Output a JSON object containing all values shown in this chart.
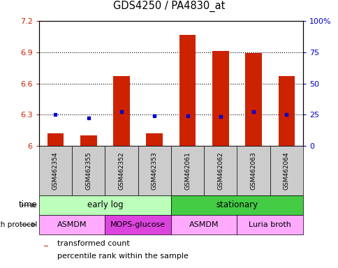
{
  "title": "GDS4250 / PA4830_at",
  "samples": [
    "GSM462354",
    "GSM462355",
    "GSM462352",
    "GSM462353",
    "GSM462061",
    "GSM462062",
    "GSM462063",
    "GSM462064"
  ],
  "transformed_counts": [
    6.12,
    6.1,
    6.67,
    6.12,
    7.07,
    6.91,
    6.89,
    6.67
  ],
  "percentile_ranks": [
    6.3,
    6.27,
    6.33,
    6.29,
    6.29,
    6.28,
    6.33,
    6.3
  ],
  "bar_base": 6.0,
  "ylim_left": [
    6.0,
    7.2
  ],
  "ylim_right": [
    0,
    100
  ],
  "yticks_left": [
    6.0,
    6.3,
    6.6,
    6.9,
    7.2
  ],
  "yticks_right": [
    0,
    25,
    50,
    75,
    100
  ],
  "ytick_labels_left": [
    "6",
    "6.3",
    "6.6",
    "6.9",
    "7.2"
  ],
  "ytick_labels_right": [
    "0",
    "25",
    "50",
    "75",
    "100%"
  ],
  "bar_color": "#CC2200",
  "dot_color": "#0000CC",
  "time_groups": [
    {
      "label": "early log",
      "start": 0,
      "end": 4,
      "color": "#BBFFBB"
    },
    {
      "label": "stationary",
      "start": 4,
      "end": 8,
      "color": "#44CC44"
    }
  ],
  "protocol_groups": [
    {
      "label": "ASMDM",
      "start": 0,
      "end": 2,
      "color": "#FFAAFF"
    },
    {
      "label": "MOPS-glucose",
      "start": 2,
      "end": 4,
      "color": "#DD44DD"
    },
    {
      "label": "ASMDM",
      "start": 4,
      "end": 6,
      "color": "#FFAAFF"
    },
    {
      "label": "Luria broth",
      "start": 6,
      "end": 8,
      "color": "#FFAAFF"
    }
  ],
  "legend_bar_label": "transformed count",
  "legend_dot_label": "percentile rank within the sample",
  "xlabel_time": "time",
  "xlabel_protocol": "growth protocol",
  "sample_label_bg": "#CCCCCC",
  "bar_width": 0.5
}
